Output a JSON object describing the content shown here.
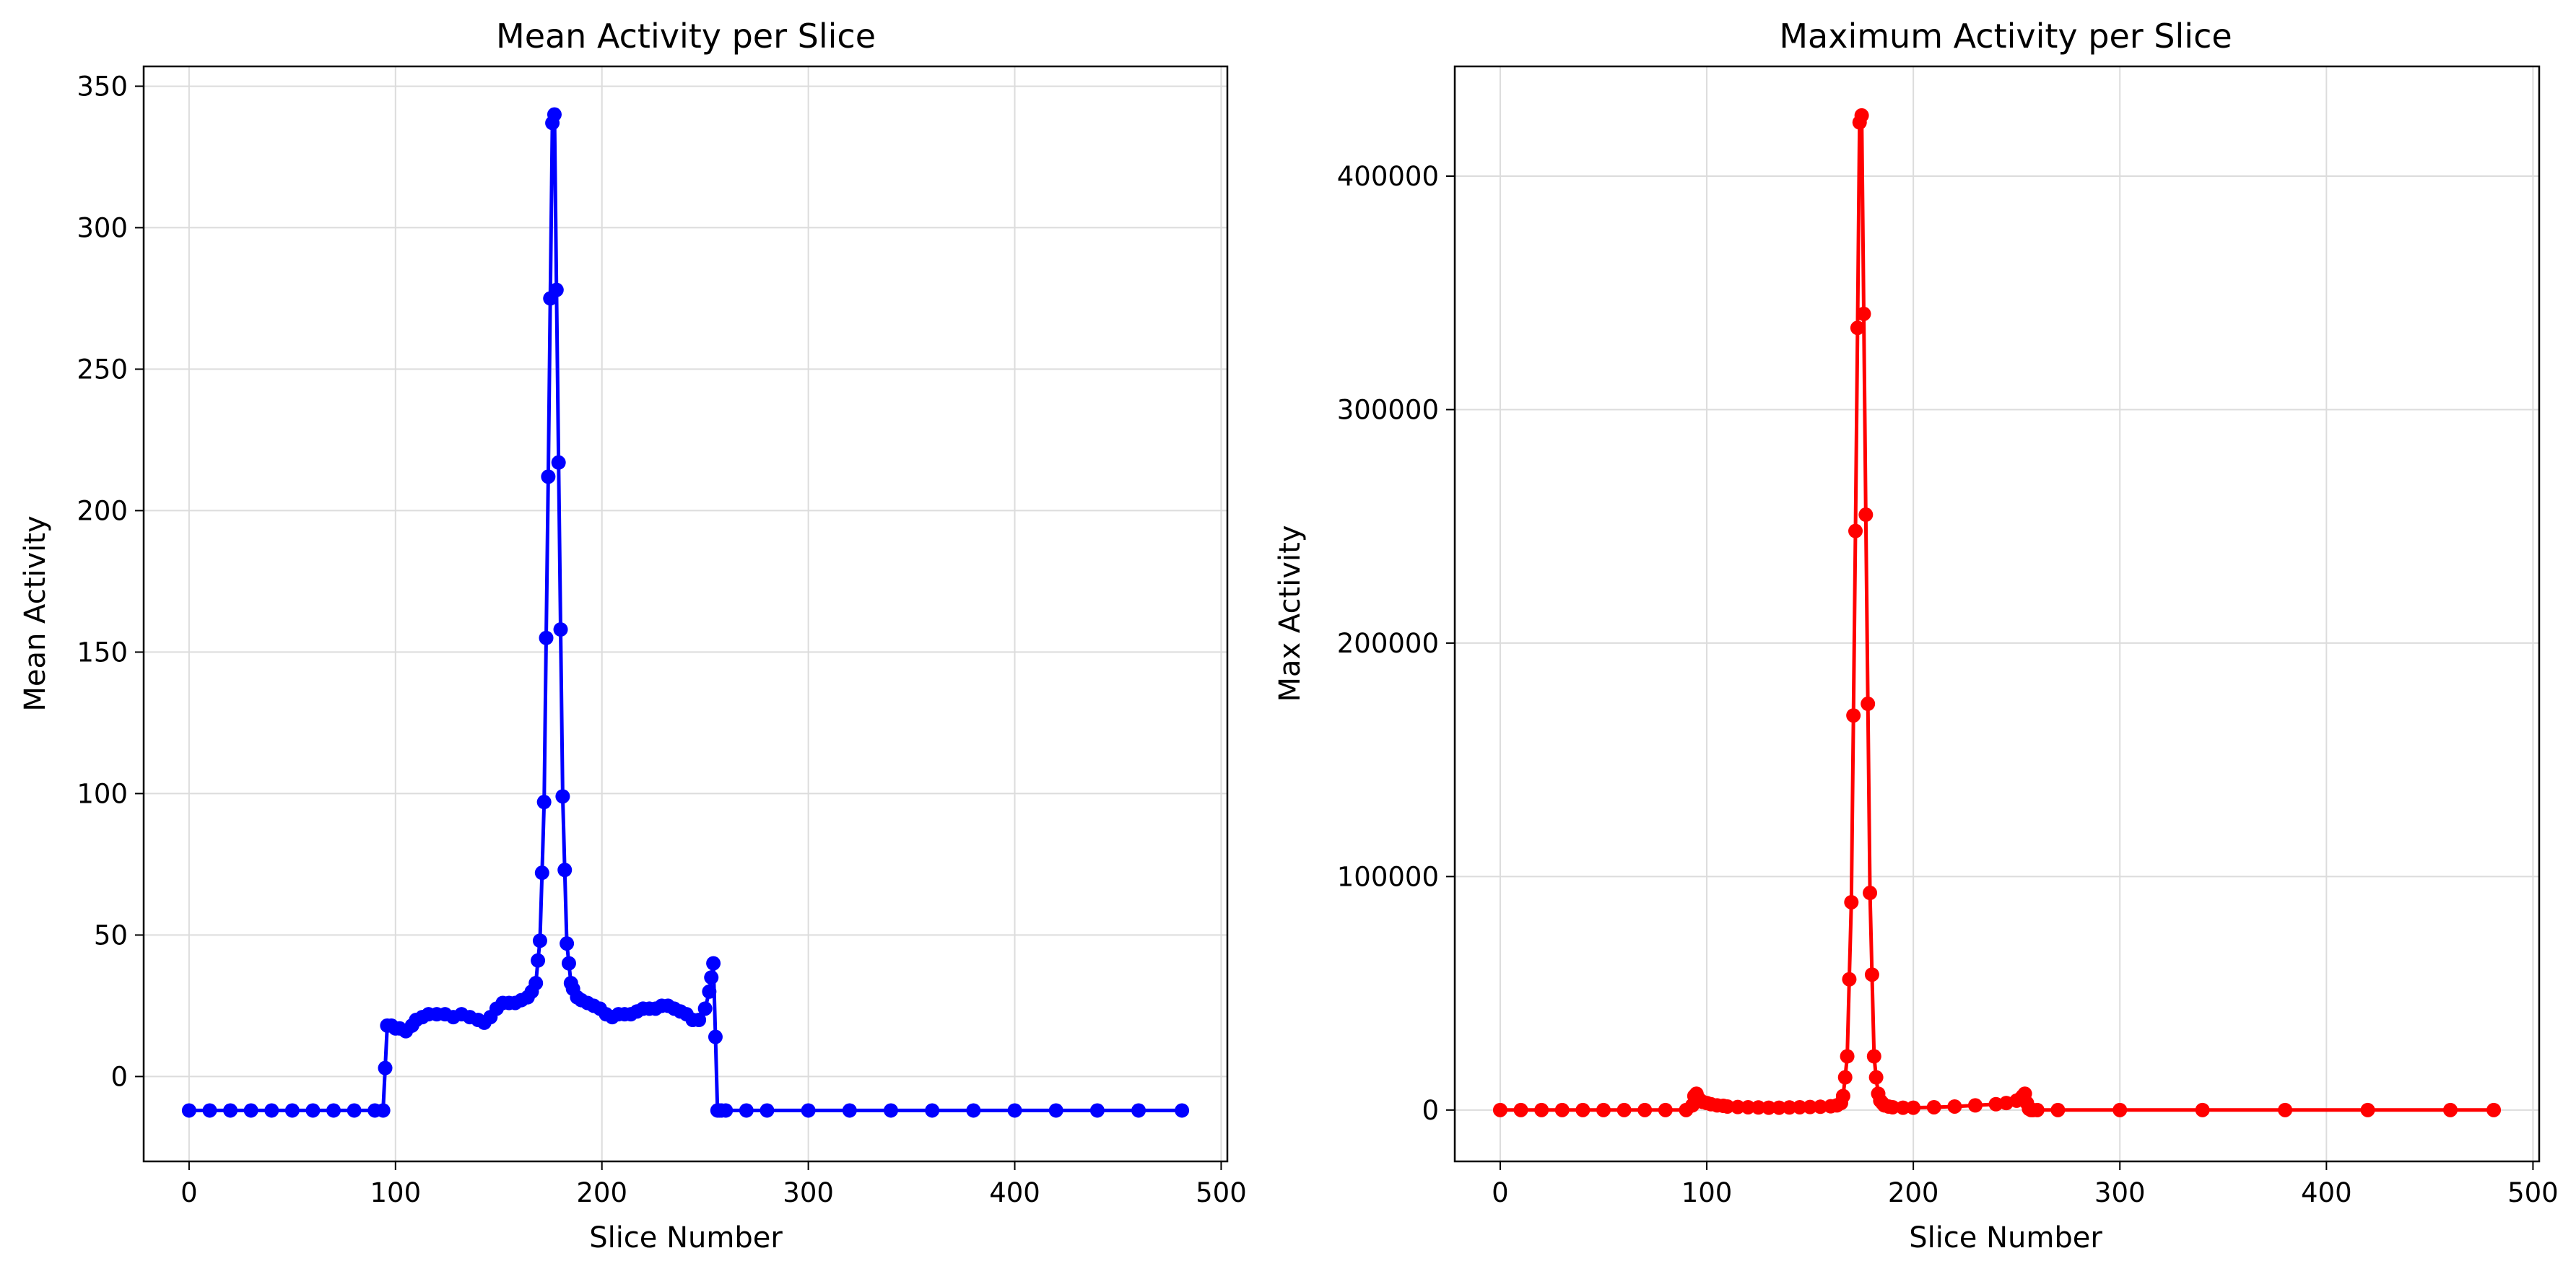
{
  "chart_data": [
    {
      "type": "line",
      "title": "Mean Activity per Slice",
      "xlabel": "Slice Number",
      "ylabel": "Mean Activity",
      "xlim": [
        -22,
        503
      ],
      "ylim": [
        -30,
        357
      ],
      "xticks": [
        0,
        100,
        200,
        300,
        400,
        500
      ],
      "xtick_labels": [
        "0",
        "100",
        "200",
        "300",
        "400",
        "500"
      ],
      "yticks": [
        0,
        50,
        100,
        150,
        200,
        250,
        300,
        350
      ],
      "ytick_labels": [
        "0",
        "50",
        "100",
        "150",
        "200",
        "250",
        "300",
        "350"
      ],
      "grid": true,
      "color": "#0000ff",
      "marker": "circle",
      "series": [
        {
          "x": [
            0,
            10,
            20,
            30,
            40,
            50,
            60,
            70,
            80,
            90,
            94,
            95,
            96,
            98,
            100,
            102,
            105,
            108,
            110,
            113,
            116,
            120,
            124,
            128,
            132,
            136,
            140,
            143,
            146,
            149,
            152,
            155,
            158,
            161,
            164,
            166,
            168,
            169,
            170,
            171,
            172,
            173,
            174,
            175,
            176,
            177,
            178,
            179,
            180,
            181,
            182,
            183,
            184,
            185,
            186,
            188,
            190,
            193,
            196,
            199,
            202,
            205,
            208,
            211,
            214,
            217,
            220,
            223,
            226,
            229,
            232,
            235,
            238,
            241,
            244,
            247,
            250,
            252,
            253,
            254,
            255,
            256,
            257,
            258,
            260,
            270,
            280,
            300,
            320,
            340,
            360,
            380,
            400,
            420,
            440,
            460,
            481
          ],
          "y": [
            -12,
            -12,
            -12,
            -12,
            -12,
            -12,
            -12,
            -12,
            -12,
            -12,
            -12,
            3,
            18,
            18,
            17,
            17,
            16,
            18,
            20,
            21,
            22,
            22,
            22,
            21,
            22,
            21,
            20,
            19,
            21,
            24,
            26,
            26,
            26,
            27,
            28,
            30,
            33,
            41,
            48,
            72,
            97,
            155,
            212,
            275,
            337,
            340,
            278,
            217,
            158,
            99,
            73,
            47,
            40,
            33,
            31,
            28,
            27,
            26,
            25,
            24,
            22,
            21,
            22,
            22,
            22,
            23,
            24,
            24,
            24,
            25,
            25,
            24,
            23,
            22,
            20,
            20,
            24,
            30,
            35,
            40,
            14,
            -12,
            -12,
            -12,
            -12,
            -12,
            -12,
            -12,
            -12,
            -12,
            -12,
            -12,
            -12,
            -12,
            -12,
            -12,
            -12
          ]
        }
      ]
    },
    {
      "type": "line",
      "title": "Maximum Activity per Slice",
      "xlabel": "Slice Number",
      "ylabel": "Max Activity",
      "xlim": [
        -22,
        503
      ],
      "ylim": [
        -22000,
        447000
      ],
      "xticks": [
        0,
        100,
        200,
        300,
        400,
        500
      ],
      "xtick_labels": [
        "0",
        "100",
        "200",
        "300",
        "400",
        "500"
      ],
      "yticks": [
        0,
        100000,
        200000,
        300000,
        400000
      ],
      "ytick_labels": [
        "0",
        "100000",
        "200000",
        "300000",
        "400000"
      ],
      "grid": true,
      "color": "#ff0000",
      "marker": "circle",
      "series": [
        {
          "x": [
            0,
            10,
            20,
            30,
            40,
            50,
            60,
            70,
            80,
            90,
            93,
            94,
            95,
            96,
            97,
            98,
            100,
            102,
            105,
            108,
            110,
            115,
            120,
            125,
            130,
            135,
            140,
            145,
            150,
            155,
            160,
            163,
            165,
            166,
            167,
            168,
            169,
            170,
            171,
            172,
            173,
            174,
            175,
            176,
            177,
            178,
            179,
            180,
            181,
            182,
            183,
            184,
            185,
            186,
            188,
            190,
            195,
            200,
            210,
            220,
            230,
            240,
            245,
            250,
            252,
            253,
            254,
            255,
            256,
            257,
            258,
            260,
            270,
            300,
            340,
            380,
            420,
            460,
            481
          ],
          "y": [
            0,
            0,
            0,
            0,
            0,
            0,
            0,
            0,
            0,
            0,
            2000,
            6000,
            7000,
            5000,
            4000,
            3500,
            3000,
            2500,
            2000,
            1800,
            1500,
            1300,
            1200,
            1100,
            1000,
            1000,
            1100,
            1200,
            1300,
            1400,
            1600,
            2000,
            3000,
            6000,
            14000,
            23000,
            56000,
            89000,
            169000,
            248000,
            335000,
            423000,
            426000,
            341000,
            255000,
            174000,
            93000,
            58000,
            23000,
            14000,
            7000,
            4000,
            3000,
            2000,
            1500,
            1200,
            1000,
            1000,
            1200,
            1500,
            2000,
            2500,
            3000,
            4000,
            5000,
            6000,
            7000,
            3000,
            500,
            0,
            0,
            0,
            0,
            0,
            0,
            0,
            0,
            0,
            0
          ]
        }
      ]
    }
  ]
}
